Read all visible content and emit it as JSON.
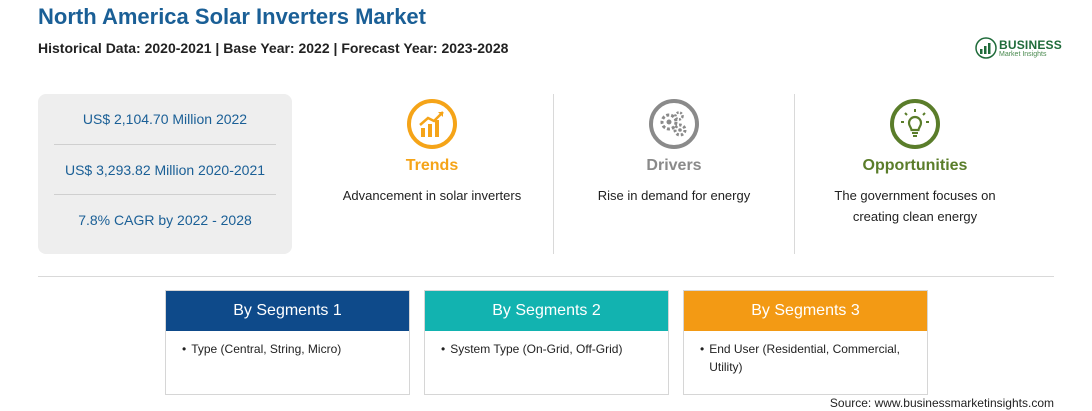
{
  "header": {
    "title": "North America Solar Inverters Market",
    "subtitle": "Historical Data: 2020-2021 | Base Year: 2022 | Forecast Year: 2023-2028"
  },
  "logo": {
    "main": "BUSINESS",
    "sub": "Market Insights",
    "icon": "growth-chart-icon",
    "color": "#1f6b3a"
  },
  "stats": [
    "US$ 2,104.70 Million 2022",
    "US$ 3,293.82 Million 2020-2021",
    "7.8% CAGR by 2022 - 2028"
  ],
  "columns": [
    {
      "heading": "Trends",
      "text": "Advancement in solar inverters",
      "color": "#f5a418",
      "icon": "trend-chart-icon"
    },
    {
      "heading": "Drivers",
      "text": "Rise in demand for energy",
      "color": "#8a8a8a",
      "icon": "gears-icon"
    },
    {
      "heading": "Opportunities",
      "text": "The government focuses on creating clean energy",
      "color": "#5a7d2a",
      "icon": "lightbulb-icon"
    }
  ],
  "segments": [
    {
      "title": "By Segments 1",
      "item": "Type (Central, String, Micro)",
      "color": "#0e4a8a"
    },
    {
      "title": "By Segments 2",
      "item": "System Type (On-Grid, Off-Grid)",
      "color": "#12b3b0"
    },
    {
      "title": "By Segments 3",
      "item": "End User (Residential, Commercial, Utility)",
      "color": "#f39a14"
    }
  ],
  "bullet": "•",
  "source": "Source: www.businessmarketinsights.com"
}
